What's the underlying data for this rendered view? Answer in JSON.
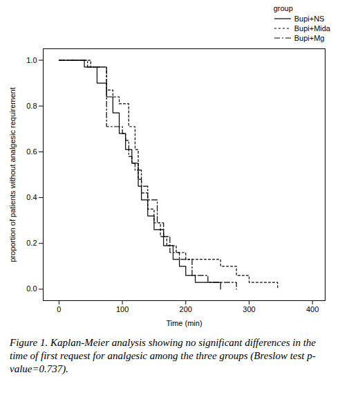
{
  "chart_data": {
    "type": "line",
    "caption": "Figure 1. Kaplan-Meier analysis showing no significant differences in the time of first request for analgesic among the three groups (Breslow test p-value=0.737).",
    "x_label": "Time (min)",
    "y_label": "proportion of patients without analgesic requirement",
    "legend_title": "group",
    "legend": "top-right",
    "grid": false,
    "xlim": [
      -25,
      420
    ],
    "xticks": [
      0,
      100,
      200,
      300,
      400
    ],
    "ylim": [
      -0.05,
      1.05
    ],
    "yticks": [
      {
        "value": 0,
        "label": "0.0"
      },
      0.2,
      0.4,
      0.6,
      0.8,
      {
        "value": 1,
        "label": "1.0"
      }
    ],
    "series": [
      {
        "name": "Bupi+NS",
        "color": "#000000",
        "line_style": "solid",
        "x": [
          0,
          40,
          60,
          75,
          85,
          95,
          105,
          115,
          125,
          130,
          140,
          150,
          165,
          180,
          190,
          200,
          215,
          255
        ],
        "values": [
          1,
          0.97,
          0.9,
          0.84,
          0.77,
          0.68,
          0.61,
          0.55,
          0.45,
          0.39,
          0.32,
          0.26,
          0.19,
          0.13,
          0.1,
          0.06,
          0.03,
          0
        ]
      },
      {
        "name": "Bupi+Mida",
        "color": "#000000",
        "line_style": "dotted",
        "x": [
          0,
          50,
          75,
          85,
          95,
          110,
          120,
          125,
          130,
          140,
          150,
          160,
          170,
          185,
          200,
          255,
          280,
          300,
          345
        ],
        "values": [
          1,
          0.97,
          0.87,
          0.84,
          0.81,
          0.71,
          0.61,
          0.48,
          0.42,
          0.35,
          0.29,
          0.23,
          0.19,
          0.16,
          0.13,
          0.1,
          0.06,
          0.03,
          0
        ]
      },
      {
        "name": "Bupi+Mg",
        "color": "#000000",
        "line_style": "dashdot",
        "x": [
          0,
          45,
          75,
          100,
          105,
          110,
          115,
          120,
          130,
          140,
          155,
          165,
          175,
          190,
          210,
          235,
          280
        ],
        "values": [
          1,
          0.97,
          0.71,
          0.68,
          0.65,
          0.58,
          0.55,
          0.52,
          0.45,
          0.39,
          0.29,
          0.23,
          0.16,
          0.13,
          0.06,
          0.03,
          0
        ]
      }
    ]
  }
}
